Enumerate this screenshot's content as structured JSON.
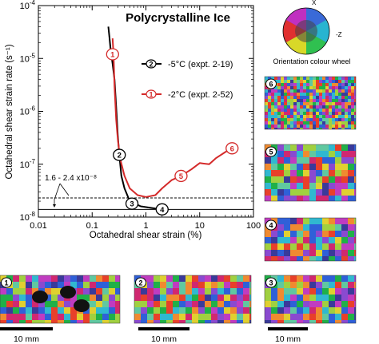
{
  "chart_data": {
    "type": "line",
    "title": "Polycrystalline Ice",
    "xlabel": "Octahedral shear strain (%)",
    "ylabel": "Octahedral shear strain rate (s⁻¹)",
    "x_scale": "log",
    "y_scale": "log",
    "xlim": [
      0.01,
      100
    ],
    "ylim": [
      1e-08,
      0.0001
    ],
    "x_ticks": [
      "0.01",
      "0.1",
      "1",
      "10",
      "100"
    ],
    "y_ticks": [
      {
        "base": "10",
        "exp": "-4"
      },
      {
        "base": "10",
        "exp": "-5"
      },
      {
        "base": "10",
        "exp": "-6"
      },
      {
        "base": "10",
        "exp": "-7"
      },
      {
        "base": "10",
        "exp": "-8"
      }
    ],
    "legend_position": "top-right",
    "series": [
      {
        "name": "-5°C (expt. 2-19)",
        "color": "#000000",
        "marker": "2",
        "points": [
          [
            0.2,
            4e-05
          ],
          [
            0.21,
            2.5e-05
          ],
          [
            0.22,
            1.5e-05
          ],
          [
            0.24,
            8e-06
          ],
          [
            0.26,
            4e-06
          ],
          [
            0.28,
            1.2e-06
          ],
          [
            0.3,
            3.5e-07
          ],
          [
            0.32,
            1.5e-07
          ],
          [
            0.35,
            6e-08
          ],
          [
            0.4,
            3.5e-08
          ],
          [
            0.5,
            2e-08
          ],
          [
            0.8,
            1.6e-08
          ],
          [
            1.5,
            1.45e-08
          ],
          [
            2,
            1.4e-08
          ]
        ]
      },
      {
        "name": "-2°C (expt. 2-52)",
        "color": "#d42a2a",
        "marker": "1",
        "points": [
          [
            0.24,
            2.4e-05
          ],
          [
            0.25,
            1.2e-05
          ],
          [
            0.26,
            3e-06
          ],
          [
            0.28,
            7e-07
          ],
          [
            0.3,
            3e-07
          ],
          [
            0.33,
            1.3e-07
          ],
          [
            0.4,
            6e-08
          ],
          [
            0.5,
            3.5e-08
          ],
          [
            0.7,
            2.6e-08
          ],
          [
            1,
            2.4e-08
          ],
          [
            1.5,
            2.6e-08
          ],
          [
            2,
            3.5e-08
          ],
          [
            3,
            5e-08
          ],
          [
            4.5,
            6e-08
          ],
          [
            7,
            8e-08
          ],
          [
            10,
            1.05e-07
          ],
          [
            15,
            1e-07
          ],
          [
            20,
            1.3e-07
          ],
          [
            30,
            1.7e-07
          ],
          [
            40,
            2e-07
          ]
        ]
      }
    ],
    "stage_markers": [
      {
        "label": "1",
        "x": 0.24,
        "y": 1.2e-05,
        "color": "#d42a2a"
      },
      {
        "label": "2",
        "x": 0.32,
        "y": 1.5e-07,
        "color": "#000000"
      },
      {
        "label": "3",
        "x": 0.55,
        "y": 1.8e-08,
        "color": "#000000"
      },
      {
        "label": "4",
        "x": 2,
        "y": 1.4e-08,
        "color": "#000000"
      },
      {
        "label": "5",
        "x": 4.5,
        "y": 6e-08,
        "color": "#d42a2a"
      },
      {
        "label": "6",
        "x": 40,
        "y": 2e-07,
        "color": "#d42a2a"
      }
    ],
    "reference_lines": [
      {
        "y": 2.3e-08,
        "style": "dashed"
      },
      {
        "y": 1.4e-08,
        "style": "solid"
      }
    ],
    "annotation": "1.6 - 2.4 x10⁻⁸"
  },
  "side": {
    "wheel_caption": "Orientation colour wheel",
    "axis_x": "X",
    "axis_z": "-Z"
  },
  "micrographs": [
    {
      "label": "6"
    },
    {
      "label": "5"
    },
    {
      "label": "4"
    },
    {
      "label": "1",
      "scale": "10 mm"
    },
    {
      "label": "2",
      "scale": "10 mm"
    },
    {
      "label": "3",
      "scale": "10 mm"
    }
  ]
}
